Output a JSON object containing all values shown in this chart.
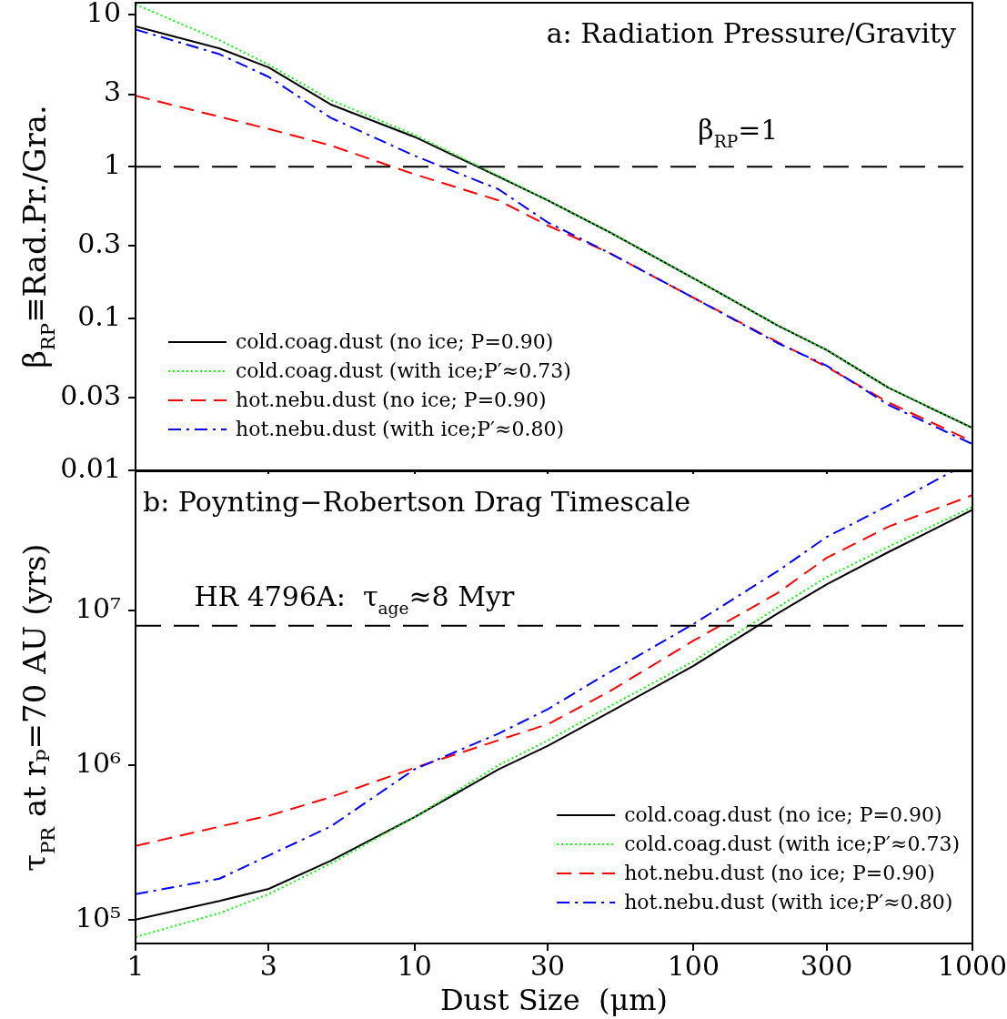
{
  "chart_data": [
    {
      "type": "line",
      "title": "a: Radiation Pressure/Gravity",
      "ylabel": "β$_{RP}$≡Rad.Pr./Gra.",
      "log": "xy",
      "xlim": [
        1,
        1000
      ],
      "ylim": [
        0.01,
        12
      ],
      "xticks": [
        1,
        3,
        10,
        30,
        100,
        300,
        1000
      ],
      "yticks": [
        0.01,
        0.03,
        0.1,
        0.3,
        1,
        3,
        10
      ],
      "tick_labels": "y",
      "legend": "bottom left",
      "ref_lines": [
        {
          "axis": "y",
          "value": 1,
          "label": "β$_{RP}$=1",
          "line_style": "dashed",
          "color": "#000000"
        }
      ],
      "series": [
        {
          "name": "cold.coag.dust (no ice; P=0.90)",
          "color": "#000000",
          "line_style": "solid",
          "x": [
            1,
            2,
            3,
            5,
            10,
            20,
            30,
            50,
            100,
            200,
            300,
            500,
            1000
          ],
          "values": [
            8.4,
            6.0,
            4.5,
            2.57,
            1.57,
            0.86,
            0.6,
            0.37,
            0.184,
            0.09,
            0.062,
            0.035,
            0.019
          ]
        },
        {
          "name": "cold.coag.dust (with ice;P′≈0.73)",
          "color": "#00ff00",
          "line_style": "dotted",
          "x": [
            1,
            2,
            3,
            5,
            10,
            20,
            30,
            50,
            100,
            200,
            300,
            500,
            1000
          ],
          "values": [
            11.7,
            6.8,
            4.7,
            2.75,
            1.62,
            0.87,
            0.6,
            0.37,
            0.184,
            0.09,
            0.062,
            0.035,
            0.019
          ]
        },
        {
          "name": "hot.nebu.dust (no ice; P=0.90)",
          "color": "#ff0000",
          "line_style": "dashed",
          "x": [
            1,
            2,
            3,
            5,
            10,
            20,
            30,
            50,
            100,
            200,
            300,
            500,
            1000
          ],
          "values": [
            2.93,
            2.13,
            1.77,
            1.38,
            0.89,
            0.6,
            0.41,
            0.27,
            0.137,
            0.07,
            0.048,
            0.028,
            0.0155
          ]
        },
        {
          "name": "hot.nebu.dust (with ice;P′≈0.80)",
          "color": "#0000ff",
          "line_style": "dashdot",
          "x": [
            1,
            2,
            3,
            5,
            10,
            20,
            30,
            50,
            100,
            200,
            300,
            500,
            1000
          ],
          "values": [
            8.0,
            5.5,
            3.9,
            2.1,
            1.18,
            0.71,
            0.43,
            0.27,
            0.137,
            0.069,
            0.049,
            0.027,
            0.0149
          ]
        }
      ]
    },
    {
      "type": "line",
      "title": "b: Poynting−Robertson Drag Timescale",
      "xlabel": "Dust Size  (μm)",
      "ylabel": "τ$_{PR}$ at rₚ=70 AU (yrs)",
      "log": "xy",
      "xlim": [
        1,
        1000
      ],
      "ylim": [
        70000,
        80000000
      ],
      "xticks": [
        1,
        3,
        10,
        30,
        100,
        300,
        1000
      ],
      "yticks": [
        {
          "value": 100000,
          "label": "10⁵"
        },
        {
          "value": 1000000,
          "label": "10⁶"
        },
        {
          "value": 10000000,
          "label": "10⁷"
        }
      ],
      "legend": "bottom right",
      "ref_lines": [
        {
          "axis": "y",
          "value": 8000000,
          "label": "HR 4796A:  τ$_{age}$≈8 Myr",
          "line_style": "dashed",
          "color": "#000000"
        }
      ],
      "series": [
        {
          "name": "cold.coag.dust (no ice; P=0.90)",
          "color": "#000000",
          "line_style": "solid",
          "x": [
            1,
            2,
            3,
            5,
            10,
            20,
            30,
            50,
            100,
            200,
            300,
            500,
            1000
          ],
          "values": [
            100000,
            132000,
            158000,
            240000,
            460000,
            940000,
            1330000,
            2200000,
            4400000,
            9600000,
            14800000,
            24000000,
            45000000
          ]
        },
        {
          "name": "cold.coag.dust (with ice;P′≈0.73)",
          "color": "#00ff00",
          "line_style": "dotted",
          "x": [
            1,
            2,
            3,
            5,
            10,
            20,
            30,
            50,
            100,
            200,
            300,
            500,
            1000
          ],
          "values": [
            77000,
            110000,
            146000,
            230000,
            460000,
            1000000,
            1440000,
            2400000,
            4700000,
            10500000,
            16500000,
            26000000,
            47000000
          ]
        },
        {
          "name": "hot.nebu.dust (no ice; P=0.90)",
          "color": "#ff0000",
          "line_style": "dashed",
          "x": [
            1,
            2,
            3,
            5,
            10,
            20,
            30,
            50,
            100,
            200,
            300,
            500,
            1000
          ],
          "values": [
            300000,
            400000,
            470000,
            620000,
            960000,
            1450000,
            1840000,
            3000000,
            6400000,
            13000000,
            22000000,
            35000000,
            56000000
          ]
        },
        {
          "name": "hot.nebu.dust (with ice;P′≈0.80)",
          "color": "#0000ff",
          "line_style": "dashdot",
          "x": [
            1,
            2,
            3,
            5,
            10,
            20,
            30,
            50,
            100,
            200,
            300,
            500,
            850
          ],
          "values": [
            146000,
            184000,
            260000,
            400000,
            940000,
            1600000,
            2300000,
            4000000,
            8200000,
            18000000,
            30000000,
            48000000,
            80000000
          ]
        }
      ]
    }
  ]
}
